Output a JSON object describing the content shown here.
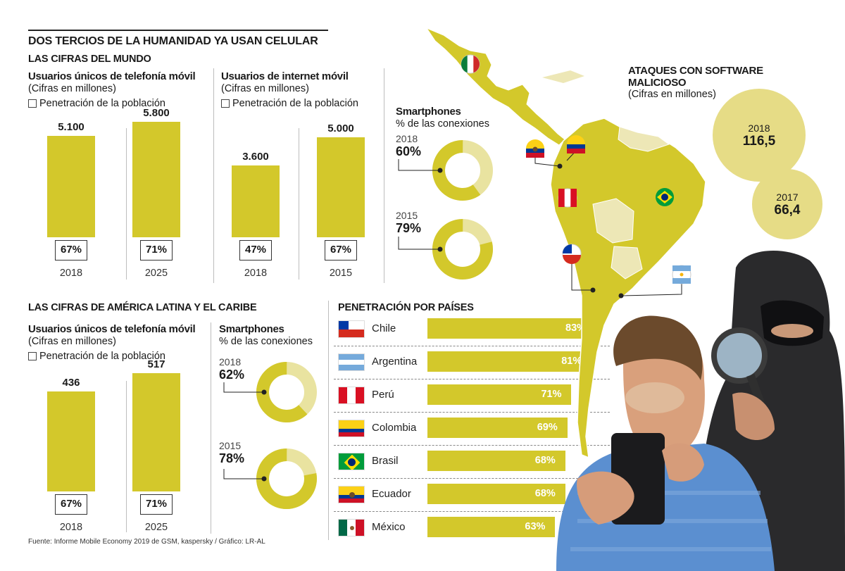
{
  "title": "DOS TERCIOS DE LA HUMANIDAD YA USAN CELULAR",
  "world": {
    "heading": "LAS CIFRAS DEL MUNDO",
    "mobile_users": {
      "title": "Usuarios únicos de telefonía móvil",
      "subtitle": "(Cifras en millones)",
      "legend": "Penetración de la población"
    },
    "internet_users": {
      "title": "Usuarios de internet móvil",
      "subtitle": "(Cifras en millones)",
      "legend": "Penetración de la población"
    },
    "smartphones": {
      "title": "Smartphones",
      "subtitle": "% de las conexiones",
      "y1": "2018",
      "v1": "60%",
      "y2": "2015",
      "v2": "79%"
    }
  },
  "latam": {
    "heading": "LAS CIFRAS DE AMÉRICA LATINA Y EL CARIBE",
    "mobile_users": {
      "title": "Usuarios únicos de telefonía móvil",
      "subtitle": "(Cifras en millones)",
      "legend": "Penetración de la población"
    },
    "smartphones": {
      "title": "Smartphones",
      "subtitle": "% de las conexiones",
      "y1": "2018",
      "v1": "62%",
      "y2": "2015",
      "v2": "78%"
    }
  },
  "malware": {
    "title_line1": "ATAQUES CON SOFTWARE",
    "title_line2": "MALICIOSO",
    "subtitle": "(Cifras en millones)",
    "b1_year": "2018",
    "b1_value": "116,5",
    "b2_year": "2017",
    "b2_value": "66,4"
  },
  "penetration": {
    "heading": "PENETRACIÓN POR PAÍSES"
  },
  "source": "Fuente: Informe Mobile Economy 2019 de GSM, kaspersky / Gráfico: LR-AL",
  "colors": {
    "accent": "#d3c82b",
    "accent_light": "#e9e3a0",
    "bubble": "#e6dc86",
    "map_light": "#ede7b6"
  },
  "chart_data": [
    {
      "type": "bar",
      "title": "Usuarios únicos de telefonía móvil",
      "categories": [
        "2018",
        "2025"
      ],
      "values": [
        5100,
        5800
      ],
      "value_labels": [
        "5.100",
        "5.800"
      ],
      "penetration_labels": [
        "67%",
        "71%"
      ],
      "ylim": [
        0,
        6000
      ]
    },
    {
      "type": "bar",
      "title": "Usuarios de internet móvil",
      "categories": [
        "2018",
        "2015"
      ],
      "values": [
        3600,
        5000
      ],
      "value_labels": [
        "3.600",
        "5.000"
      ],
      "penetration_labels": [
        "47%",
        "67%"
      ],
      "ylim": [
        0,
        6000
      ]
    },
    {
      "type": "pie",
      "title": "Smartphones",
      "categories": [
        "2018",
        "2015"
      ],
      "values": [
        60,
        79
      ]
    },
    {
      "type": "bar",
      "title": "Usuarios únicos de telefonía móvil",
      "categories": [
        "2018",
        "2025"
      ],
      "values": [
        436,
        517
      ],
      "value_labels": [
        "436",
        "517"
      ],
      "penetration_labels": [
        "67%",
        "71%"
      ],
      "ylim": [
        0,
        600
      ]
    },
    {
      "type": "pie",
      "title": "Smartphones",
      "categories": [
        "2018",
        "2015"
      ],
      "values": [
        62,
        78
      ]
    },
    {
      "type": "bar",
      "title": "PENETRACIÓN POR PAÍSES",
      "categories": [
        "Chile",
        "Argentina",
        "Perú",
        "Colombia",
        "Brasil",
        "Ecuador",
        "México"
      ],
      "values": [
        83,
        81,
        71,
        69,
        68,
        68,
        63
      ],
      "value_labels": [
        "83%",
        "81%",
        "71%",
        "69%",
        "68%",
        "68%",
        "63%"
      ],
      "xlim": [
        0,
        100
      ]
    },
    {
      "type": "bar",
      "title": "ATAQUES CON SOFTWARE MALICIOSO",
      "categories": [
        "2018",
        "2017"
      ],
      "values": [
        116.5,
        66.4
      ]
    }
  ]
}
